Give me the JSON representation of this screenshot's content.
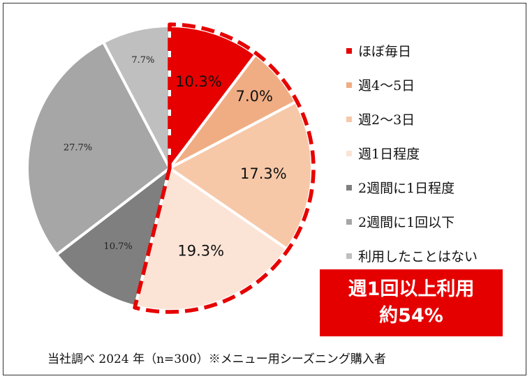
{
  "chart_data": {
    "type": "pie",
    "categories": [
      "ほぼ毎日",
      "週4～5日",
      "週2～3日",
      "週1日程度",
      "2週間に1日程度",
      "2週間に1回以下",
      "利用したことはない"
    ],
    "values": [
      10.3,
      7.0,
      17.3,
      19.3,
      10.7,
      27.7,
      7.7
    ],
    "value_labels": [
      "10.3%",
      "7.0%",
      "17.3%",
      "19.3%",
      "10.7%",
      "27.7%",
      "7.7%"
    ],
    "colors": [
      "#e60000",
      "#f0ad83",
      "#f6c8a8",
      "#fbe4d6",
      "#7f7f7f",
      "#a6a6a6",
      "#bfbfbf"
    ],
    "highlight_slices": 4,
    "highlight_color": "#e60000",
    "legend_placement": "right"
  },
  "callout": {
    "line1": "週1回以上利用",
    "line2": "約54%"
  },
  "source_note": "当社調べ 2024 年（n=300）※メニュー用シーズニング購入者"
}
